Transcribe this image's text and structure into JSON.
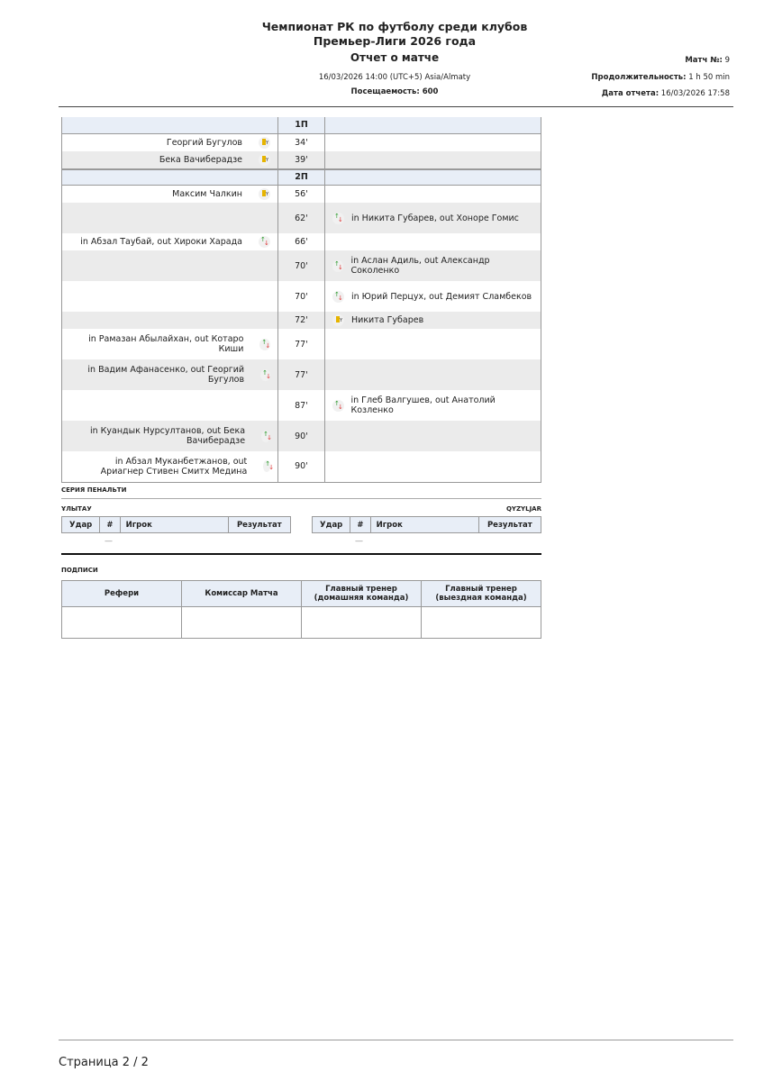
{
  "header": {
    "title_line1": "Чемпионат РК по футболу среди клубов",
    "title_line2": "Премьер-Лиги 2026 года",
    "subtitle": "Отчет о матче",
    "datetime": "16/03/2026 14:00 (UTC+5) Asia/Almaty",
    "attendance_label": "Посещаемость:",
    "attendance": "600",
    "match_no_label": "Матч №:",
    "match_no": "9",
    "duration_label": "Продолжительность:",
    "duration": "1 h 50 min",
    "report_date_label": "Дата отчета:",
    "report_date": "16/03/2026 17:58"
  },
  "events": [
    {
      "period": "1П"
    },
    {
      "side": "home",
      "text": "Георгий Бугулов",
      "icon": "yellow-card",
      "min": "34'"
    },
    {
      "side": "home",
      "text": "Бека Вачиберадзе",
      "icon": "yellow-card",
      "min": "39'"
    },
    {
      "period": "2П"
    },
    {
      "side": "home",
      "text": "Максим Чалкин",
      "icon": "yellow-card",
      "min": "56'"
    },
    {
      "side": "away",
      "text": "in Никита Губарев, out Хоноре Гомис",
      "icon": "substitution",
      "min": "62'"
    },
    {
      "side": "home",
      "text": "in Абзал Таубай, out Хироки Харада",
      "icon": "substitution",
      "min": "66'"
    },
    {
      "side": "away",
      "text": "in Аслан Адиль, out Александр Соколенко",
      "icon": "substitution",
      "min": "70'"
    },
    {
      "side": "away",
      "text": "in Юрий Перцух, out Демият Сламбеков",
      "icon": "substitution",
      "min": "70'"
    },
    {
      "side": "away",
      "text": "Никита Губарев",
      "icon": "yellow-card",
      "min": "72'"
    },
    {
      "side": "home",
      "text": "in Рамазан Абылайхан, out Котаро Киши",
      "icon": "substitution",
      "min": "77'"
    },
    {
      "side": "home",
      "text": "in Вадим Афанасенко, out Георгий Бугулов",
      "icon": "substitution",
      "min": "77'"
    },
    {
      "side": "away",
      "text": "in Глеб Валгушев, out Анатолий Козленко",
      "icon": "substitution",
      "min": "87'"
    },
    {
      "side": "home",
      "text": "in Куандык Нурсултанов, out Бека Вачиберадзе",
      "icon": "substitution",
      "min": "90'"
    },
    {
      "side": "home",
      "text": "in Абзал Муканбетжанов, out Ариагнер Стивен Смитх Медина",
      "icon": "substitution",
      "min": "90'"
    }
  ],
  "penalties": {
    "title": "СЕРИЯ ПЕНАЛЬТИ",
    "home_team": "ҰЛЫТАУ",
    "away_team": "QYZYLJAR",
    "columns": [
      "Удар",
      "#",
      "Игрок",
      "Результат"
    ],
    "empty": "—"
  },
  "signatures": {
    "title": "ПОДПИСИ",
    "columns": [
      "Рефери",
      "Комиссар Матча",
      "Главный тренер (домашняя команда)",
      "Главный тренер (выездная команда)"
    ]
  },
  "footer": {
    "page": "Страница 2 / 2"
  }
}
